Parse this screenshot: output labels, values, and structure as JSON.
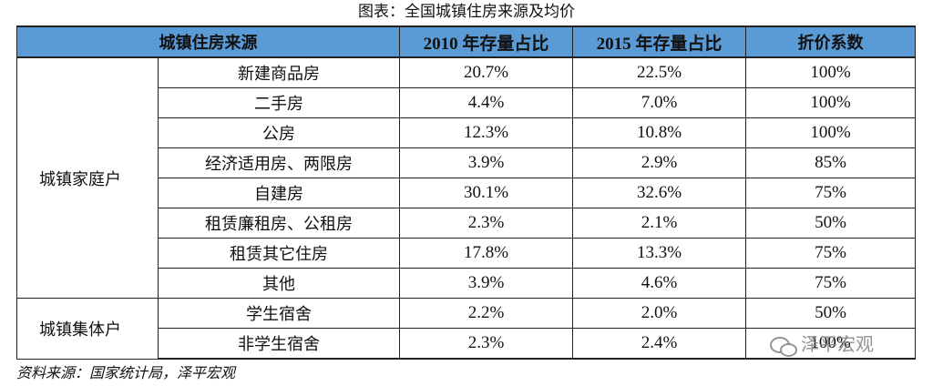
{
  "title": "图表：全国城镇住房来源及均价",
  "headers": [
    "城镇住房来源",
    "2010 年存量占比",
    "2015 年存量占比",
    "折价系数"
  ],
  "groups": [
    {
      "name": "城镇家庭户",
      "rows": [
        {
          "source": "新建商品房",
          "share2010": "20.7%",
          "share2015": "22.5%",
          "coef": "100%"
        },
        {
          "source": "二手房",
          "share2010": "4.4%",
          "share2015": "7.0%",
          "coef": "100%"
        },
        {
          "source": "公房",
          "share2010": "12.3%",
          "share2015": "10.8%",
          "coef": "100%"
        },
        {
          "source": "经济适用房、两限房",
          "share2010": "3.9%",
          "share2015": "2.9%",
          "coef": "85%"
        },
        {
          "source": "自建房",
          "share2010": "30.1%",
          "share2015": "32.6%",
          "coef": "75%"
        },
        {
          "source": "租赁廉租房、公租房",
          "share2010": "2.3%",
          "share2015": "2.1%",
          "coef": "50%"
        },
        {
          "source": "租赁其它住房",
          "share2010": "17.8%",
          "share2015": "13.3%",
          "coef": "75%"
        },
        {
          "source": "其他",
          "share2010": "3.9%",
          "share2015": "4.6%",
          "coef": "75%"
        }
      ]
    },
    {
      "name": "城镇集体户",
      "rows": [
        {
          "source": "学生宿舍",
          "share2010": "2.2%",
          "share2015": "2.0%",
          "coef": "50%"
        },
        {
          "source": "非学生宿舍",
          "share2010": "2.3%",
          "share2015": "2.4%",
          "coef": "100%"
        }
      ]
    }
  ],
  "footnote": "资料来源：国家统计局，泽平宏观",
  "watermark": "泽平宏观",
  "colors": {
    "header_bg": "#5b9bd5"
  }
}
